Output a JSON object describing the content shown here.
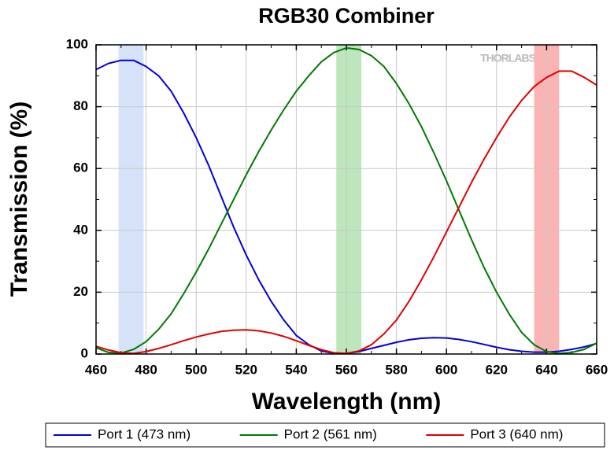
{
  "chart_data": {
    "type": "line",
    "title": "RGB30 Combiner",
    "xlabel": "Wavelength (nm)",
    "ylabel": "Transmission (%)",
    "watermark": "THORLABS",
    "xlim": [
      460,
      660
    ],
    "ylim": [
      0,
      100
    ],
    "xticks": [
      460,
      480,
      500,
      520,
      540,
      560,
      580,
      600,
      620,
      640,
      660
    ],
    "yticks": [
      0,
      20,
      40,
      60,
      80,
      100
    ],
    "grid": true,
    "legend": "bottom",
    "bands": [
      {
        "x": [
          469,
          479
        ],
        "color": "#d6e2f7"
      },
      {
        "x": [
          556,
          566
        ],
        "color": "#bde6bd"
      },
      {
        "x": [
          635,
          645
        ],
        "color": "#fbb4b4"
      }
    ],
    "x": [
      460,
      465,
      470,
      475,
      480,
      485,
      490,
      495,
      500,
      505,
      510,
      515,
      520,
      525,
      530,
      535,
      540,
      545,
      550,
      555,
      560,
      565,
      570,
      575,
      580,
      585,
      590,
      595,
      600,
      605,
      610,
      615,
      620,
      625,
      630,
      635,
      640,
      645,
      650,
      655,
      660
    ],
    "series": [
      {
        "name": "Port 1 (473 nm)",
        "color": "#0000dd",
        "values": [
          92,
          94,
          95,
          95,
          93,
          90,
          85,
          78,
          70,
          61,
          51,
          41,
          32,
          24,
          17,
          11,
          6,
          3,
          1,
          0.2,
          0.2,
          0.8,
          1.8,
          2.8,
          3.8,
          4.6,
          5.1,
          5.3,
          5.2,
          4.7,
          4,
          3.1,
          2.2,
          1.4,
          0.9,
          0.6,
          0.6,
          0.9,
          1.5,
          2.3,
          3.4
        ]
      },
      {
        "name": "Port 2 (561 nm)",
        "color": "#007a00",
        "values": [
          2,
          0.5,
          0.3,
          1.5,
          4,
          8,
          13,
          19.5,
          26.5,
          34,
          42,
          50,
          58,
          65.5,
          72.5,
          79,
          85,
          90,
          94.5,
          97.5,
          99,
          98.5,
          96.5,
          93,
          87.5,
          81,
          73.5,
          65,
          56,
          46.5,
          37,
          28,
          20,
          13,
          7,
          3,
          0.8,
          0.2,
          0.5,
          1.5,
          3.5
        ]
      },
      {
        "name": "Port 3 (640 nm)",
        "color": "#e00000",
        "values": [
          2.5,
          1.3,
          0.4,
          0.2,
          0.8,
          1.8,
          3,
          4.3,
          5.5,
          6.5,
          7.3,
          7.7,
          7.8,
          7.5,
          6.8,
          5.7,
          4.3,
          2.8,
          1.4,
          0.4,
          0.2,
          1,
          3,
          6.5,
          11,
          17,
          24,
          31.5,
          39.5,
          47.5,
          55.5,
          63,
          70,
          76.5,
          82,
          86.5,
          89.5,
          91.5,
          91.5,
          89.5,
          87
        ]
      }
    ]
  }
}
